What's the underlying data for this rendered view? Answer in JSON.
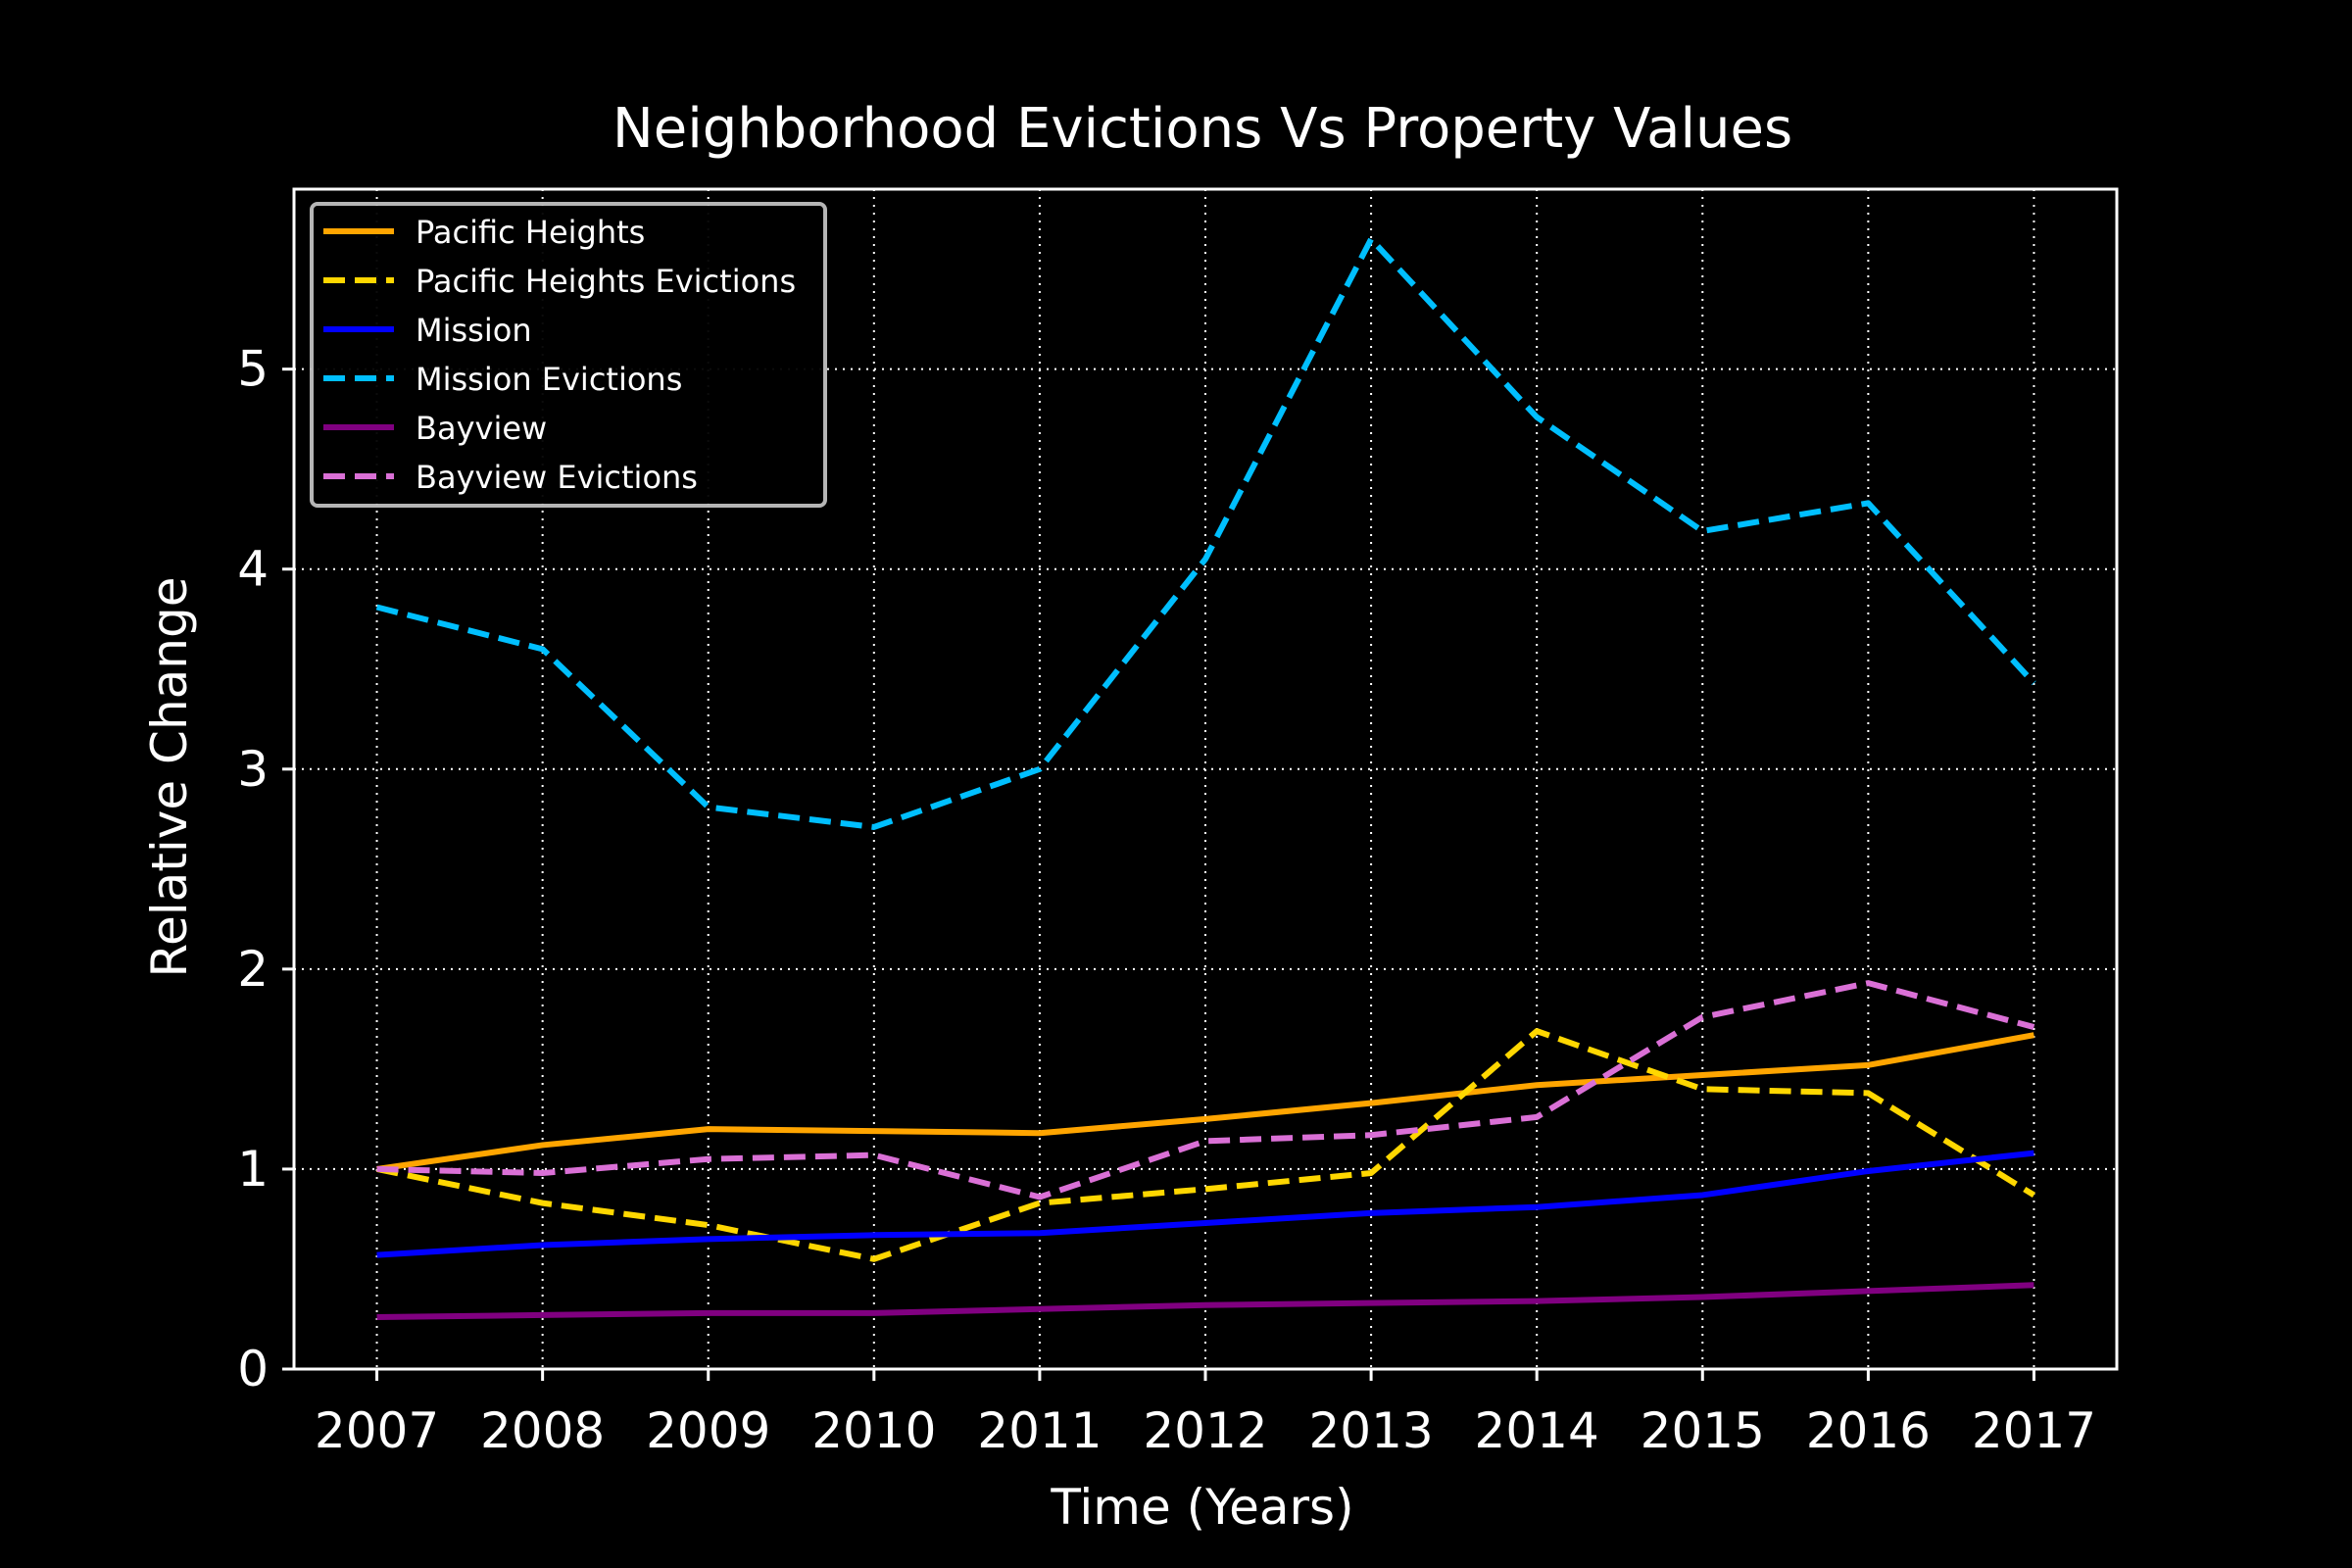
{
  "chart_data": {
    "type": "line",
    "title": "Neighborhood Evictions Vs Property Values",
    "xlabel": "Time (Years)",
    "ylabel": "Relative Change",
    "x": [
      2007,
      2008,
      2009,
      2010,
      2011,
      2012,
      2013,
      2014,
      2015,
      2016,
      2017
    ],
    "xlim": [
      2006.5,
      2017.5
    ],
    "ylim": [
      0,
      5.9
    ],
    "yticks": [
      0,
      1,
      2,
      3,
      4,
      5
    ],
    "grid": true,
    "grid_style": "dotted",
    "legend_position": "upper-left",
    "background": "#000000",
    "foreground": "#ffffff",
    "series": [
      {
        "name": "Pacific Heights",
        "color": "#ffa500",
        "dash": "solid",
        "values": [
          1.0,
          1.12,
          1.2,
          1.19,
          1.18,
          1.25,
          1.33,
          1.42,
          1.47,
          1.52,
          1.67
        ]
      },
      {
        "name": "Pacific Heights Evictions",
        "color": "#ffd700",
        "dash": "dashed",
        "values": [
          1.0,
          0.83,
          0.72,
          0.55,
          0.83,
          0.9,
          0.98,
          1.69,
          1.4,
          1.38,
          0.87
        ]
      },
      {
        "name": "Mission",
        "color": "#0000ff",
        "dash": "solid",
        "values": [
          0.57,
          0.62,
          0.65,
          0.67,
          0.68,
          0.73,
          0.78,
          0.81,
          0.87,
          0.99,
          1.08
        ]
      },
      {
        "name": "Mission Evictions",
        "color": "#00bfff",
        "dash": "dashed",
        "values": [
          3.81,
          3.6,
          2.81,
          2.71,
          3.0,
          4.05,
          5.65,
          4.76,
          4.19,
          4.33,
          3.43
        ]
      },
      {
        "name": "Bayview",
        "color": "#800080",
        "dash": "solid",
        "values": [
          0.26,
          0.27,
          0.28,
          0.28,
          0.3,
          0.32,
          0.33,
          0.34,
          0.36,
          0.39,
          0.42
        ]
      },
      {
        "name": "Bayview Evictions",
        "color": "#da70d6",
        "dash": "dashed",
        "values": [
          1.0,
          0.98,
          1.05,
          1.07,
          0.86,
          1.14,
          1.17,
          1.26,
          1.76,
          1.93,
          1.71
        ]
      }
    ]
  }
}
